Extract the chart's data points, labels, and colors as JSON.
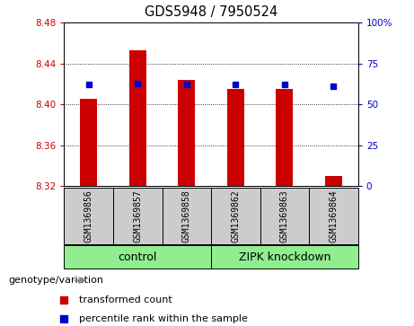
{
  "title": "GDS5948 / 7950524",
  "samples": [
    "GSM1369856",
    "GSM1369857",
    "GSM1369858",
    "GSM1369862",
    "GSM1369863",
    "GSM1369864"
  ],
  "transformed_counts": [
    8.405,
    8.453,
    8.424,
    8.415,
    8.415,
    8.33
  ],
  "percentile_ranks": [
    62,
    63,
    62,
    62,
    62,
    61
  ],
  "y_min": 8.32,
  "y_max": 8.48,
  "y_ticks": [
    8.32,
    8.36,
    8.4,
    8.44,
    8.48
  ],
  "y2_ticks": [
    0,
    25,
    50,
    75,
    100
  ],
  "y2_labels": [
    "0",
    "25",
    "50",
    "75",
    "100%"
  ],
  "bar_color": "#cc0000",
  "dot_color": "#0000cc",
  "control_label": "control",
  "zipk_label": "ZIPK knockdown",
  "group_color": "#90ee90",
  "sample_bg_color": "#cccccc",
  "plot_bg_color": "#ffffff",
  "legend_bar_label": "transformed count",
  "legend_dot_label": "percentile rank within the sample",
  "xlabel_arrow": "genotype/variation",
  "bar_width": 0.35
}
